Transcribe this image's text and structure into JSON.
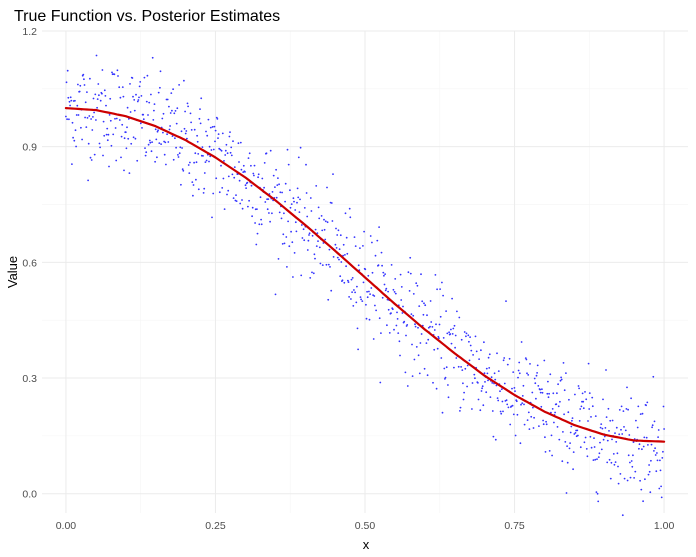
{
  "chart_data": {
    "type": "scatter",
    "title": "True Function vs. Posterior Estimates",
    "xlabel": "x",
    "ylabel": "Value",
    "xlim": [
      -0.04,
      1.04
    ],
    "ylim": [
      -0.05,
      1.2
    ],
    "x_ticks": [
      "0.00",
      "0.25",
      "0.50",
      "0.75",
      "1.00"
    ],
    "x_tick_values": [
      0,
      0.25,
      0.5,
      0.75,
      1.0
    ],
    "y_ticks": [
      "0.0",
      "0.3",
      "0.6",
      "0.9",
      "1.2"
    ],
    "y_tick_values": [
      0,
      0.3,
      0.6,
      0.9,
      1.2
    ],
    "grid": true,
    "legend": "none",
    "series": [
      {
        "type": "line",
        "color": "#cc0000",
        "function": "cosine-like decay",
        "x": [
          0,
          0.05,
          0.1,
          0.15,
          0.2,
          0.25,
          0.3,
          0.35,
          0.4,
          0.45,
          0.5,
          0.55,
          0.6,
          0.65,
          0.7,
          0.75,
          0.8,
          0.85,
          0.9,
          0.95,
          1.0
        ],
        "y": [
          1.0,
          0.995,
          0.979,
          0.953,
          0.917,
          0.872,
          0.82,
          0.761,
          0.697,
          0.63,
          0.561,
          0.492,
          0.426,
          0.364,
          0.306,
          0.256,
          0.213,
          0.178,
          0.153,
          0.138,
          0.135
        ]
      },
      {
        "type": "scatter",
        "color": "#3333ff",
        "point_count": 1000,
        "noise_sd": 0.07,
        "x_range": [
          0,
          1
        ]
      }
    ]
  }
}
